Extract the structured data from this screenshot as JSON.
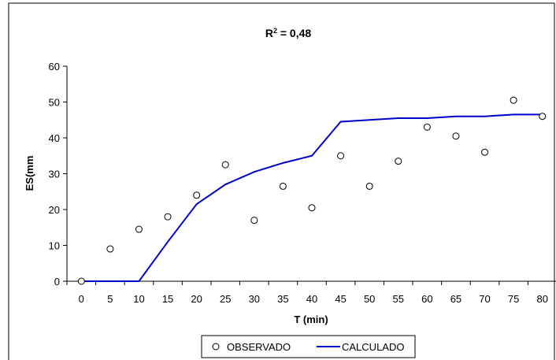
{
  "chart_data": {
    "type": "line",
    "title_base": "R",
    "title_sup": "2",
    "title_rest": " = 0,48",
    "xlabel": "T (min)",
    "ylabel": "ES(mm",
    "ylim": [
      0,
      60
    ],
    "yticks": [
      "0",
      "10",
      "20",
      "30",
      "40",
      "50",
      "60"
    ],
    "categories": [
      "0",
      "5",
      "10",
      "15",
      "20",
      "25",
      "30",
      "35",
      "40",
      "45",
      "50",
      "55",
      "60",
      "65",
      "70",
      "75",
      "80"
    ],
    "grid": false,
    "legend_position": "bottom",
    "series": [
      {
        "name": "OBSERVADO",
        "style": "markers",
        "marker": "open-circle",
        "color": "#000000",
        "values": [
          0,
          9,
          14.5,
          18,
          24,
          32.5,
          17,
          26.5,
          20.5,
          35,
          26.5,
          33.5,
          43,
          40.5,
          36,
          50.5,
          46
        ]
      },
      {
        "name": "CALCULADO",
        "style": "line",
        "color": "#0000CC",
        "values": [
          0,
          0,
          0,
          11,
          21.5,
          27,
          30.5,
          33,
          35,
          44.5,
          45,
          45.5,
          45.5,
          46,
          46,
          46.5,
          46.5
        ]
      }
    ]
  }
}
